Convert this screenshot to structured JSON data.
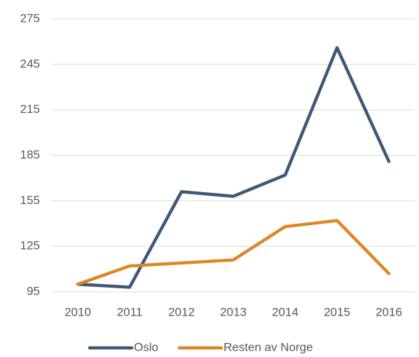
{
  "chart_data": {
    "type": "line",
    "categories": [
      "2010",
      "2011",
      "2012",
      "2013",
      "2014",
      "2015",
      "2016"
    ],
    "series": [
      {
        "name": "Oslo",
        "color": "#3f5877",
        "values": [
          100,
          98,
          161,
          158,
          172,
          256,
          181
        ]
      },
      {
        "name": "Resten av Norge",
        "color": "#dd8626",
        "values": [
          100,
          112,
          114,
          116,
          138,
          142,
          107
        ]
      }
    ],
    "ylim": [
      95,
      275
    ],
    "yticks": [
      95,
      125,
      155,
      185,
      215,
      245,
      275
    ],
    "grid": true,
    "legend": "bottom"
  }
}
